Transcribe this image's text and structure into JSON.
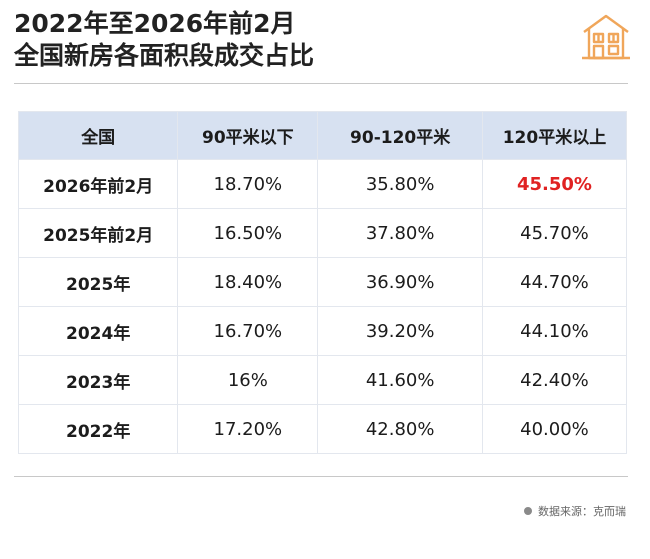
{
  "title": {
    "line1": "2022年至2026年前2月",
    "line2": "全国新房各面积段成交占比"
  },
  "logo": {
    "icon": "house-icon",
    "color": "#f0a65a"
  },
  "table": {
    "headers": [
      "全国",
      "90平米以下",
      "90-120平米",
      "120平米以上"
    ],
    "rows": [
      [
        "2026年前2月",
        "18.70%",
        "35.80%",
        "45.50%"
      ],
      [
        "2025年前2月",
        "16.50%",
        "37.80%",
        "45.70%"
      ],
      [
        "2025年",
        "18.40%",
        "36.90%",
        "44.70%"
      ],
      [
        "2024年",
        "16.70%",
        "39.20%",
        "44.10%"
      ],
      [
        "2023年",
        "16%",
        "41.60%",
        "42.40%"
      ],
      [
        "2022年",
        "17.20%",
        "42.80%",
        "40.00%"
      ]
    ],
    "highlight_color": "#e02222",
    "header_bg": "#d7e1f1"
  },
  "source": {
    "text": "数据来源：克而瑞"
  }
}
